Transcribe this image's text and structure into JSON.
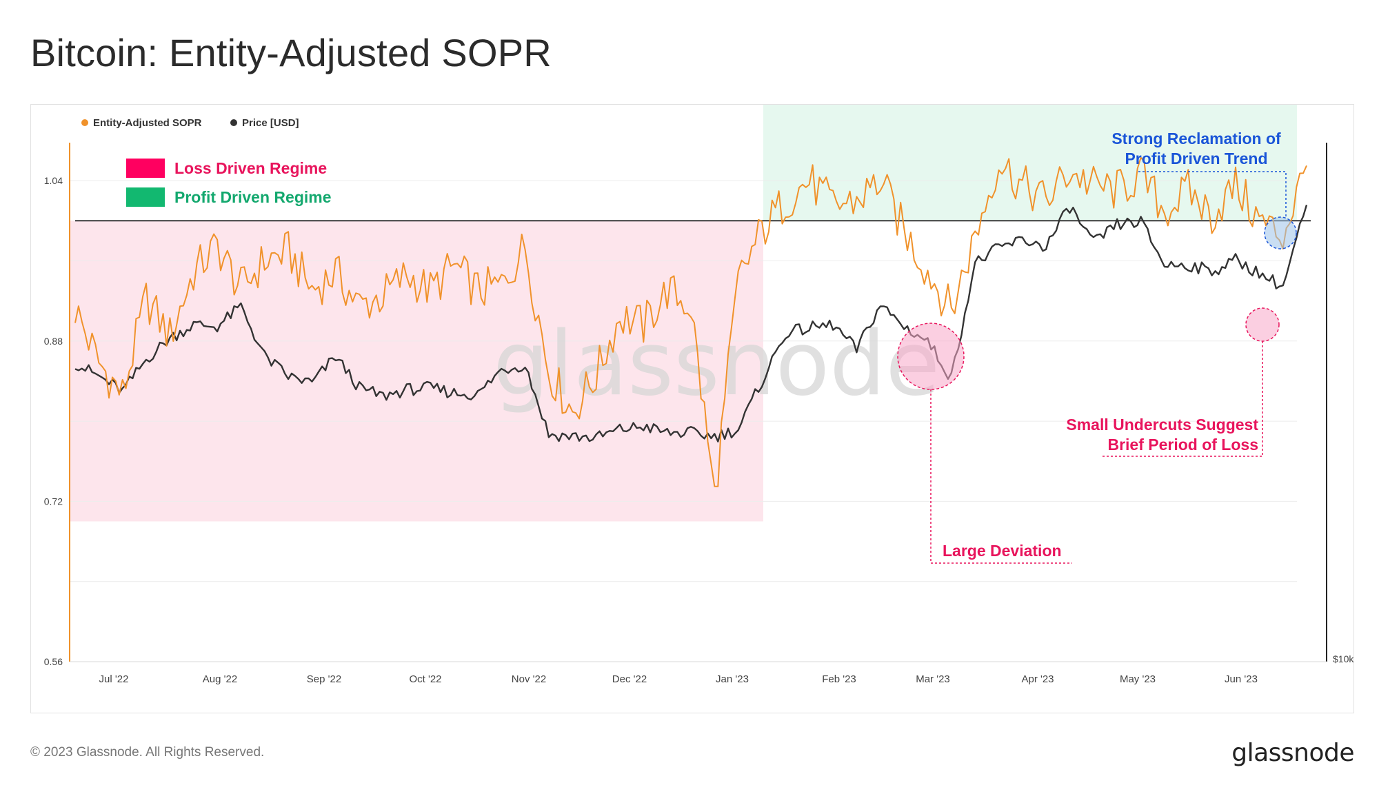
{
  "title": "Bitcoin: Entity-Adjusted SOPR",
  "footer": {
    "copyright": "© 2023 Glassnode. All Rights Reserved.",
    "logo": "glassnode"
  },
  "watermark": "glassnode",
  "colors": {
    "sopr": "#f0922b",
    "price": "#333333",
    "loss": "#ff0060",
    "profit": "#12b870",
    "loss_text": "#e8145c",
    "profit_text": "#13a86e",
    "reclaim_text": "#1a55d8",
    "loss_zone_fill": "#fde5ec",
    "profit_zone_fill": "#e6f8ef"
  },
  "legend": {
    "sopr": "Entity-Adjusted SOPR",
    "price": "Price [USD]",
    "loss_regime": "Loss Driven Regime",
    "profit_regime": "Profit Driven Regime"
  },
  "annotations": {
    "reclaim_line1": "Strong Reclamation of",
    "reclaim_line2": "Profit Driven Trend",
    "undercut_line1": "Small Undercuts Suggest",
    "undercut_line2": "Brief Period of Loss",
    "deviation": "Large Deviation"
  },
  "chart_data": {
    "type": "line",
    "title": "Bitcoin: Entity-Adjusted SOPR",
    "x_ticks": [
      "Jul '22",
      "Aug '22",
      "Sep '22",
      "Oct '22",
      "Nov '22",
      "Dec '22",
      "Jan '23",
      "Feb '23",
      "Mar '23",
      "Apr '23",
      "May '23",
      "Jun '23"
    ],
    "y_left": {
      "ticks": [
        "0.56",
        "0.72",
        "0.88",
        "1.04"
      ],
      "ylim": [
        0.56,
        1.08
      ]
    },
    "y_right": {
      "ticks": [
        "$10k"
      ]
    },
    "reference_line": 1.0,
    "regimes": [
      {
        "name": "Loss Driven Regime",
        "start": "Jun '22",
        "end": "Jan '23 (mid)"
      },
      {
        "name": "Profit Driven Regime",
        "start": "Jan '23 (mid)",
        "end": "Jun '23"
      }
    ],
    "series": [
      {
        "name": "Entity-Adjusted SOPR",
        "axis": "left",
        "x": [
          "Jun 24 '22",
          "Jul 1 '22",
          "Jul 8 '22",
          "Jul 15 '22",
          "Jul 22 '22",
          "Jul 29 '22",
          "Aug 5 '22",
          "Aug 12 '22",
          "Aug 19 '22",
          "Aug 26 '22",
          "Sep 2 '22",
          "Sep 9 '22",
          "Sep 16 '22",
          "Sep 23 '22",
          "Sep 30 '22",
          "Oct 7 '22",
          "Oct 14 '22",
          "Oct 21 '22",
          "Oct 28 '22",
          "Nov 4 '22",
          "Nov 11 '22",
          "Nov 18 '22",
          "Nov 25 '22",
          "Dec 2 '22",
          "Dec 9 '22",
          "Dec 16 '22",
          "Dec 23 '22",
          "Dec 30 '22",
          "Jan 6 '23",
          "Jan 13 '23",
          "Jan 20 '23",
          "Jan 27 '23",
          "Feb 3 '23",
          "Feb 10 '23",
          "Feb 17 '23",
          "Feb 24 '23",
          "Mar 3 '23",
          "Mar 10 '23",
          "Mar 17 '23",
          "Mar 24 '23",
          "Mar 31 '23",
          "Apr 7 '23",
          "Apr 14 '23",
          "Apr 21 '23",
          "Apr 28 '23",
          "May 5 '23",
          "May 12 '23",
          "May 19 '23",
          "May 26 '23",
          "Jun 2 '23",
          "Jun 9 '23",
          "Jun 16 '23",
          "Jun 23 '23"
        ],
        "values": [
          0.912,
          0.858,
          0.826,
          0.922,
          0.885,
          0.948,
          0.975,
          0.932,
          0.96,
          0.969,
          0.931,
          0.948,
          0.915,
          0.925,
          0.946,
          0.93,
          0.955,
          0.93,
          0.935,
          0.975,
          0.85,
          0.81,
          0.846,
          0.905,
          0.895,
          0.93,
          0.915,
          0.725,
          0.94,
          0.99,
          1.02,
          1.04,
          1.015,
          1.02,
          1.04,
          0.99,
          0.95,
          0.91,
          0.985,
          1.06,
          1.035,
          1.02,
          1.05,
          1.035,
          1.03,
          1.045,
          1.01,
          1.03,
          1.005,
          1.035,
          1.0,
          0.985,
          1.055
        ]
      },
      {
        "name": "Price [USD]",
        "axis": "right",
        "x": [
          "Jun 24 '22",
          "Jul 1 '22",
          "Jul 8 '22",
          "Jul 15 '22",
          "Jul 22 '22",
          "Jul 29 '22",
          "Aug 5 '22",
          "Aug 12 '22",
          "Aug 19 '22",
          "Aug 26 '22",
          "Sep 2 '22",
          "Sep 9 '22",
          "Sep 16 '22",
          "Sep 23 '22",
          "Sep 30 '22",
          "Oct 7 '22",
          "Oct 14 '22",
          "Oct 21 '22",
          "Oct 28 '22",
          "Nov 4 '22",
          "Nov 11 '22",
          "Nov 18 '22",
          "Nov 25 '22",
          "Dec 2 '22",
          "Dec 9 '22",
          "Dec 16 '22",
          "Dec 23 '22",
          "Dec 30 '22",
          "Jan 6 '23",
          "Jan 13 '23",
          "Jan 20 '23",
          "Jan 27 '23",
          "Feb 3 '23",
          "Feb 10 '23",
          "Feb 17 '23",
          "Feb 24 '23",
          "Mar 3 '23",
          "Mar 10 '23",
          "Mar 17 '23",
          "Mar 24 '23",
          "Mar 31 '23",
          "Apr 7 '23",
          "Apr 14 '23",
          "Apr 21 '23",
          "Apr 28 '23",
          "May 5 '23",
          "May 12 '23",
          "May 19 '23",
          "May 26 '23",
          "Jun 2 '23",
          "Jun 9 '23",
          "Jun 16 '23",
          "Jun 23 '23"
        ],
        "values": [
          21000,
          20200,
          19300,
          21200,
          22500,
          23300,
          23200,
          24400,
          21400,
          20200,
          19800,
          21400,
          19500,
          19000,
          19400,
          19500,
          19200,
          19100,
          20600,
          20900,
          16700,
          16600,
          16500,
          17000,
          17200,
          16800,
          16800,
          16600,
          17000,
          19900,
          22800,
          23100,
          23300,
          21800,
          24500,
          23200,
          22300,
          20100,
          27000,
          27900,
          28400,
          28000,
          30400,
          28200,
          29300,
          29500,
          26900,
          26900,
          26500,
          27200,
          26400,
          25600,
          30500
        ]
      }
    ]
  }
}
